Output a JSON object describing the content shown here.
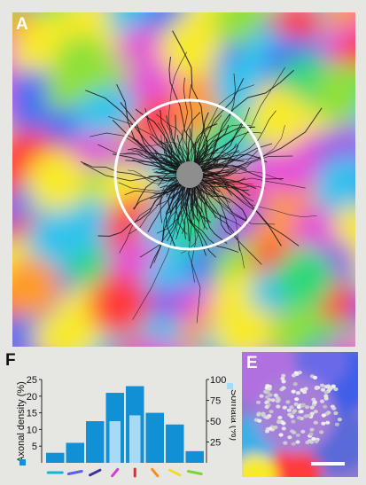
{
  "panel_a": {
    "label": "A"
  },
  "panel_e": {
    "label": "E"
  },
  "panel_f": {
    "label": "F"
  },
  "chart_data": {
    "type": "bar",
    "categories": [
      "0",
      "22.5",
      "45",
      "67.5",
      "90",
      "112.5",
      "135",
      "157.5"
    ],
    "series": [
      {
        "name": "Axonal density (%)",
        "values": [
          3,
          6,
          12.5,
          21,
          23,
          15,
          11.5,
          3.5
        ],
        "color": "#1190d6"
      },
      {
        "name": "Somata (%)",
        "values": [
          0,
          0,
          0,
          50,
          57,
          0,
          0,
          0
        ],
        "color": "#a8daf6"
      }
    ],
    "category_colors": [
      "#15b5d9",
      "#5a5ef0",
      "#3b2fa3",
      "#d83bd1",
      "#e8263a",
      "#ff8a1a",
      "#f4dc1f",
      "#7cd534"
    ],
    "ylabel": "Axonal density (%)",
    "ylabel_right": "Somata (%)",
    "ylim": [
      0,
      25
    ],
    "yticks": [
      "5",
      "10",
      "15",
      "20",
      "25"
    ],
    "ylim_right": [
      0,
      100
    ],
    "yticks_right": [
      "25",
      "50",
      "75",
      "100"
    ]
  }
}
